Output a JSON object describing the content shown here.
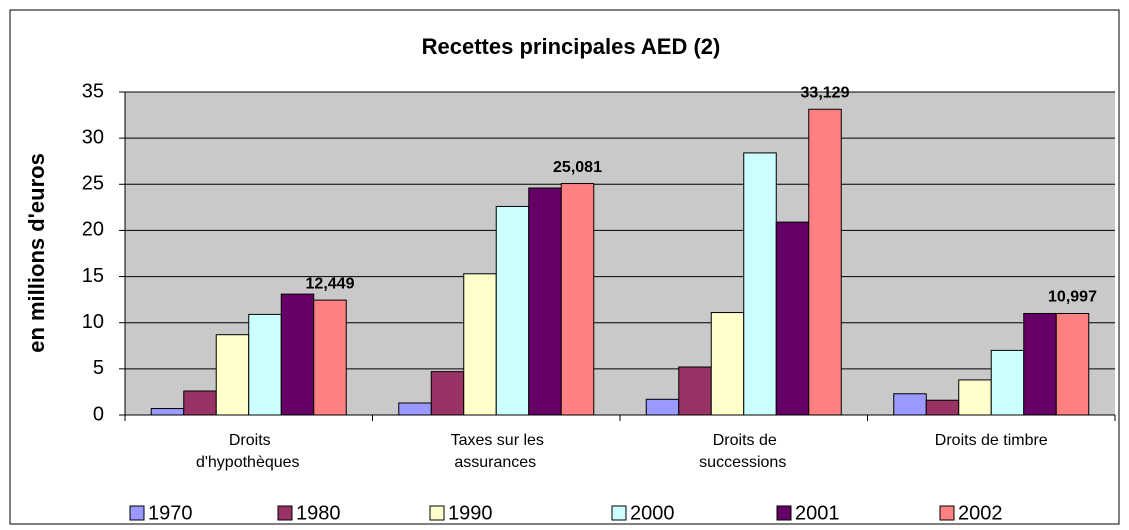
{
  "chart_data": {
    "type": "bar",
    "title": "Recettes principales AED (2)",
    "y_label": "en millions d'euros",
    "categories": [
      "Droits d'hypothèques",
      "Taxes sur les assurances",
      "Droits de successions",
      "Droits de timbre"
    ],
    "series": [
      {
        "name": "1970",
        "color": "#9999ff",
        "values": [
          0.7,
          1.3,
          1.7,
          2.3
        ]
      },
      {
        "name": "1980",
        "color": "#993366",
        "values": [
          2.6,
          4.7,
          5.2,
          1.6
        ]
      },
      {
        "name": "1990",
        "color": "#ffffcc",
        "values": [
          8.7,
          15.3,
          11.1,
          3.8
        ]
      },
      {
        "name": "2000",
        "color": "#ccffff",
        "values": [
          10.9,
          22.6,
          28.4,
          7.0
        ]
      },
      {
        "name": "2001",
        "color": "#660066",
        "values": [
          13.1,
          24.6,
          20.9,
          11.0
        ]
      },
      {
        "name": "2002",
        "color": "#ff8080",
        "values": [
          12.449,
          25.081,
          33.129,
          10.997
        ],
        "value_labels": [
          "12,449",
          "25,081",
          "33,129",
          "10,997"
        ]
      }
    ],
    "ylim": [
      0,
      35
    ],
    "yticks": [
      0,
      5,
      10,
      15,
      20,
      25,
      30,
      35
    ],
    "grid": true,
    "legend": "bottom"
  }
}
